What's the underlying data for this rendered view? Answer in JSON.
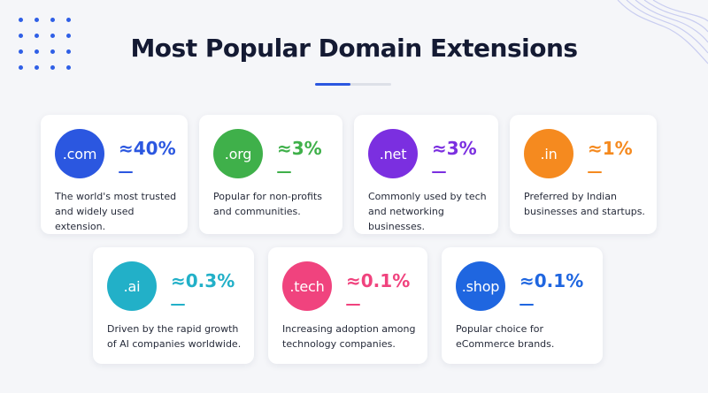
{
  "title": "Most Popular Domain Extensions",
  "extensions": [
    {
      "ext": ".com",
      "share": "≈40%",
      "color": "#2b57e0",
      "desc_line1": "The world's most trusted",
      "desc_line2": "and widely used extension."
    },
    {
      "ext": ".org",
      "share": "≈3%",
      "color": "#3fb04a",
      "desc_line1": "Popular for non-profits",
      "desc_line2": "and communities."
    },
    {
      "ext": ".net",
      "share": "≈3%",
      "color": "#7b2fe0",
      "desc_line1": "Commonly used by tech",
      "desc_line2": "and networking businesses."
    },
    {
      "ext": ".in",
      "share": "≈1%",
      "color": "#f58a1f",
      "desc_line1": "Preferred by Indian",
      "desc_line2": "businesses and startups."
    },
    {
      "ext": ".ai",
      "share": "≈0.3%",
      "color": "#22b0c8",
      "desc_line1": "Driven by the rapid growth",
      "desc_line2": "of AI companies worldwide."
    },
    {
      "ext": ".tech",
      "share": "≈0.1%",
      "color": "#f0437e",
      "desc_line1": "Increasing adoption among",
      "desc_line2": "technology companies."
    },
    {
      "ext": ".shop",
      "share": "≈0.1%",
      "color": "#1f66e0",
      "desc_line1": "Popular choice for",
      "desc_line2": "eCommerce brands."
    }
  ]
}
